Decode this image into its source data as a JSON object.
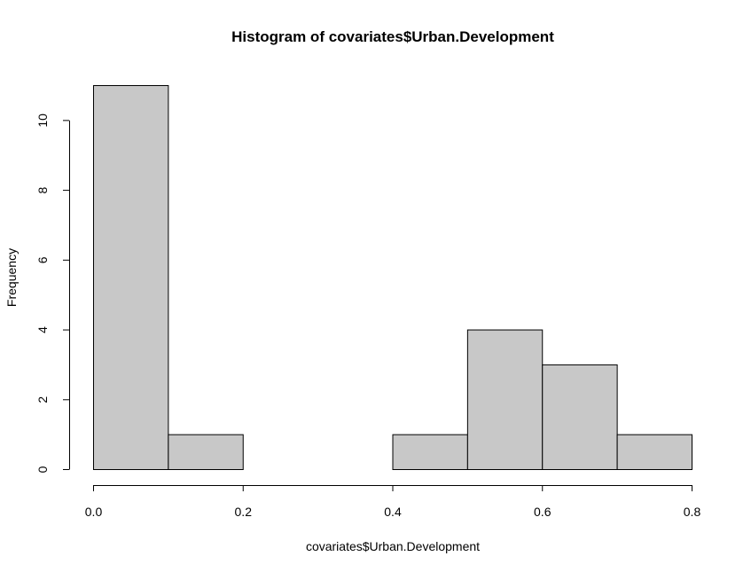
{
  "chart_data": {
    "type": "bar",
    "title": "Histogram of covariates$Urban.Development",
    "xlabel": "covariates$Urban.Development",
    "ylabel": "Frequency",
    "bins": [
      {
        "x0": 0.0,
        "x1": 0.1,
        "count": 11
      },
      {
        "x0": 0.1,
        "x1": 0.2,
        "count": 1
      },
      {
        "x0": 0.2,
        "x1": 0.3,
        "count": 0
      },
      {
        "x0": 0.3,
        "x1": 0.4,
        "count": 0
      },
      {
        "x0": 0.4,
        "x1": 0.5,
        "count": 1
      },
      {
        "x0": 0.5,
        "x1": 0.6,
        "count": 4
      },
      {
        "x0": 0.6,
        "x1": 0.7,
        "count": 3
      },
      {
        "x0": 0.7,
        "x1": 0.8,
        "count": 1
      }
    ],
    "xlim": [
      0,
      0.8
    ],
    "ylim": [
      0,
      11
    ],
    "xticks": [
      "0.0",
      "0.2",
      "0.4",
      "0.6",
      "0.8"
    ],
    "xtick_values": [
      0,
      0.2,
      0.4,
      0.6,
      0.8
    ],
    "yticks": [
      "0",
      "2",
      "4",
      "6",
      "8",
      "10"
    ],
    "ytick_values": [
      0,
      2,
      4,
      6,
      8,
      10
    ],
    "bar_fill": "#c8c8c8",
    "bar_stroke": "#000000",
    "grid": false,
    "legend": "none"
  }
}
